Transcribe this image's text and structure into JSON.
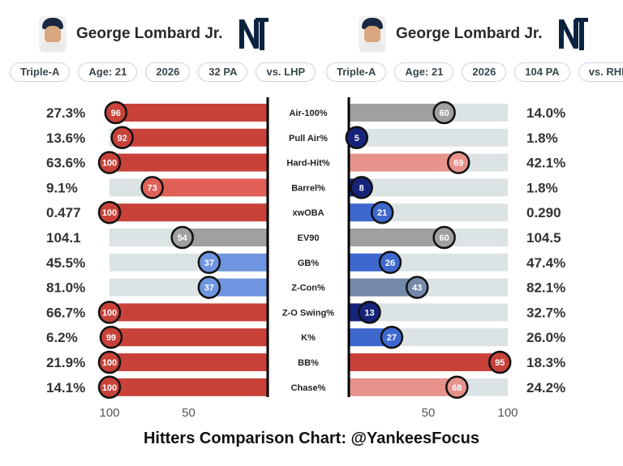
{
  "left_player": {
    "name": "George Lombard Jr.",
    "pills": [
      "Triple-A",
      "Age: 21",
      "2026",
      "32 PA",
      "vs. LHP"
    ]
  },
  "right_player": {
    "name": "George Lombard Jr.",
    "pills": [
      "Triple-A",
      "Age: 21",
      "2026",
      "104 PA",
      "vs. RHP"
    ]
  },
  "footer": "Hitters Comparison Chart: @YankeesFocus",
  "colors": {
    "bar_bg": "#dbe3e5",
    "red_strong": "#c9423a",
    "red_mid": "#e06058",
    "red_light": "#e8928c",
    "gray": "#a0a0a0",
    "blue_light": "#6f95e0",
    "blue_mid": "#3f68cf",
    "blue_slate": "#7489a8",
    "navy": "#16237a",
    "yankees_navy": "#0c2340"
  },
  "chart_data": {
    "type": "bar",
    "categories": [
      "Air-100%",
      "Pull Air%",
      "Hard-Hit%",
      "Barrel%",
      "xwOBA",
      "EV90",
      "GB%",
      "Z-Con%",
      "Z-O Swing%",
      "K%",
      "BB%",
      "Chase%"
    ],
    "series": [
      {
        "side": "left",
        "percentiles": [
          96,
          92,
          100,
          73,
          100,
          54,
          37,
          37,
          100,
          99,
          100,
          100
        ],
        "raw_values": [
          "27.3%",
          "13.6%",
          "63.6%",
          "9.1%",
          "0.477",
          "104.1",
          "45.5%",
          "81.0%",
          "66.7%",
          "6.2%",
          "21.9%",
          "14.1%"
        ],
        "colors": [
          "#c9423a",
          "#c9423a",
          "#c9423a",
          "#e06058",
          "#c9423a",
          "#a0a0a0",
          "#6f95e0",
          "#6f95e0",
          "#c9423a",
          "#c9423a",
          "#c9423a",
          "#c9423a"
        ]
      },
      {
        "side": "right",
        "percentiles": [
          60,
          5,
          69,
          8,
          21,
          60,
          26,
          43,
          13,
          27,
          95,
          68
        ],
        "raw_values": [
          "14.0%",
          "1.8%",
          "42.1%",
          "1.8%",
          "0.290",
          "104.5",
          "47.4%",
          "82.1%",
          "32.7%",
          "26.0%",
          "18.3%",
          "24.2%"
        ],
        "colors": [
          "#a0a0a0",
          "#16237a",
          "#e8928c",
          "#16237a",
          "#3f68cf",
          "#a0a0a0",
          "#3f68cf",
          "#7489a8",
          "#16237a",
          "#3f68cf",
          "#c9423a",
          "#e8928c"
        ]
      }
    ],
    "left_axis_ticks": [
      100,
      50
    ],
    "right_axis_ticks": [
      50,
      100
    ],
    "xlim": [
      0,
      100
    ]
  }
}
